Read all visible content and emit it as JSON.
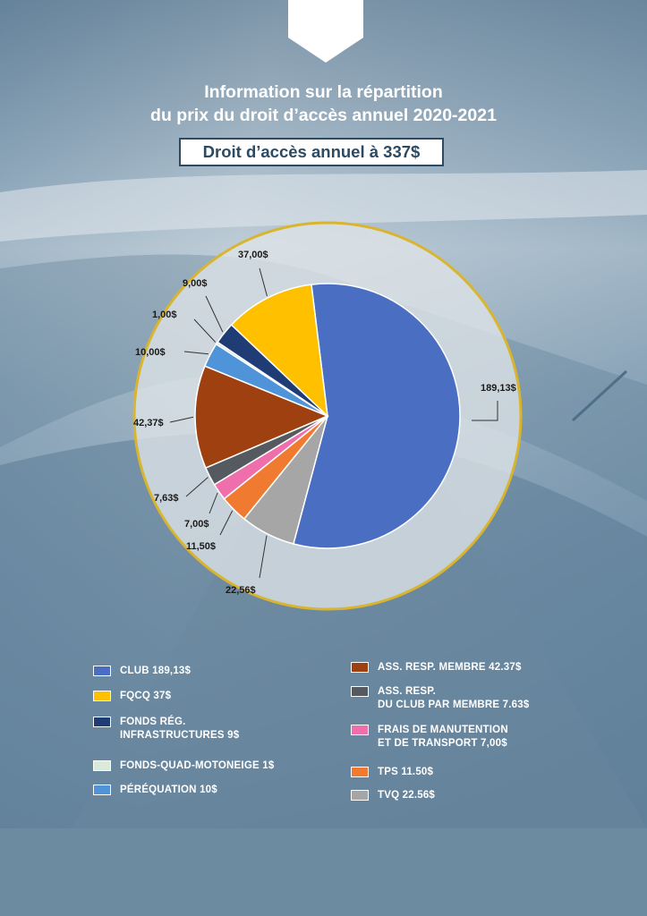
{
  "header": {
    "title_line1": "Information sur la répartition",
    "title_line2": "du prix du droit d’accès annuel 2020-2021",
    "price_box": "Droit d’accès annuel à 337$"
  },
  "colors": {
    "ring": "#d9b52f",
    "donut_fill": "#dfe4e8",
    "box_border": "#2d4a63"
  },
  "chart_data": {
    "type": "pie",
    "slices": [
      {
        "key": "club",
        "value": 189.13,
        "label": "189,13$",
        "color": "#4a6ec2"
      },
      {
        "key": "tvq",
        "value": 22.56,
        "label": "22,56$",
        "color": "#a6a6a6"
      },
      {
        "key": "tps",
        "value": 11.5,
        "label": "11,50$",
        "color": "#f07a30"
      },
      {
        "key": "frais",
        "value": 7.0,
        "label": "7,00$",
        "color": "#ef6fad"
      },
      {
        "key": "ass_club",
        "value": 7.63,
        "label": "7,63$",
        "color": "#555a60"
      },
      {
        "key": "ass_membre",
        "value": 42.37,
        "label": "42,37$",
        "color": "#9e4010"
      },
      {
        "key": "perequation",
        "value": 10.0,
        "label": "10,00$",
        "color": "#4f93d8"
      },
      {
        "key": "fonds_quad",
        "value": 1.0,
        "label": "1,00$",
        "color": "#d9eadb"
      },
      {
        "key": "fonds_reg",
        "value": 9.0,
        "label": "9,00$",
        "color": "#203c74"
      },
      {
        "key": "fqcq",
        "value": 37.0,
        "label": "37,00$",
        "color": "#ffc000"
      }
    ],
    "legend": {
      "left": [
        {
          "color": "#4a6ec2",
          "lines": [
            "CLUB 189,13$"
          ]
        },
        {
          "color": "#ffc000",
          "lines": [
            "FQCQ 37$"
          ]
        },
        {
          "color": "#203c74",
          "lines": [
            "FONDS RÉG.",
            "INFRASTRUCTURES 9$"
          ]
        },
        {
          "color": "#d9eadb",
          "lines": [
            "FONDS-QUAD-MOTONEIGE 1$"
          ]
        },
        {
          "color": "#4f93d8",
          "lines": [
            "PÉRÉQUATION 10$"
          ]
        }
      ],
      "right": [
        {
          "color": "#9e4010",
          "lines": [
            "ASS. RESP. MEMBRE 42.37$"
          ]
        },
        {
          "color": "#555a60",
          "lines": [
            "ASS. RESP.",
            "DU CLUB PAR MEMBRE 7.63$"
          ]
        },
        {
          "color": "#ef6fad",
          "lines": [
            "FRAIS DE MANUTENTION",
            "ET DE TRANSPORT 7,00$"
          ]
        },
        {
          "color": "#f07a30",
          "lines": [
            "TPS 11.50$"
          ]
        },
        {
          "color": "#a6a6a6",
          "lines": [
            "TVQ 22.56$"
          ]
        }
      ]
    }
  }
}
